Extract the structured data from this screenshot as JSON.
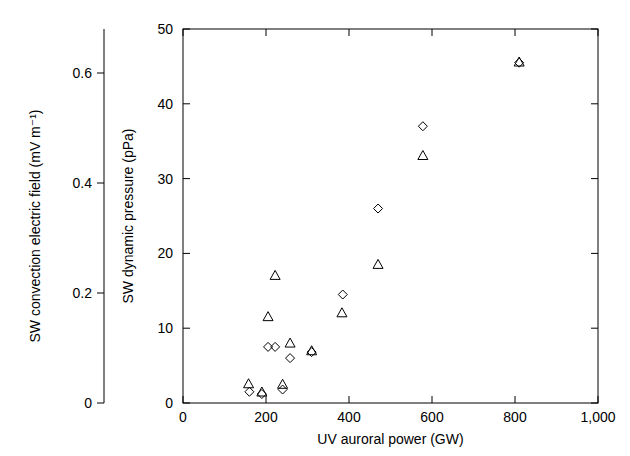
{
  "chart_data": {
    "type": "scatter",
    "x_label": "UV auroral power (GW)",
    "y_label": "SW dynamic pressure (pPa)",
    "y2_label": "SW convection electric field (mV m⁻¹)",
    "xlim": [
      0,
      1000
    ],
    "xticks": [
      0,
      200,
      400,
      600,
      800,
      {
        "value": 1000,
        "label": "1,000"
      }
    ],
    "ylim": [
      0,
      50
    ],
    "yticks": [
      0,
      10,
      20,
      30,
      40,
      50
    ],
    "y2lim": [
      0,
      0.68
    ],
    "y2ticks": [
      0,
      0.2,
      0.4,
      0.6
    ],
    "grid": false,
    "series": [
      {
        "color": "#000000",
        "marker": "diamond",
        "x": [
          160,
          190,
          205,
          222,
          240,
          258,
          310,
          385,
          470,
          578,
          810
        ],
        "values": [
          1.5,
          1.2,
          7.5,
          7.5,
          1.8,
          6,
          6.8,
          14.5,
          26,
          37,
          45.5
        ]
      },
      {
        "color": "#000000",
        "marker": "triangle",
        "axis": "y2",
        "x": [
          158,
          190,
          205,
          222,
          240,
          258,
          310,
          383,
          470,
          578,
          810
        ],
        "values": [
          0.035,
          0.02,
          0.157,
          0.232,
          0.034,
          0.109,
          0.095,
          0.164,
          0.252,
          0.45,
          0.62
        ]
      }
    ]
  }
}
